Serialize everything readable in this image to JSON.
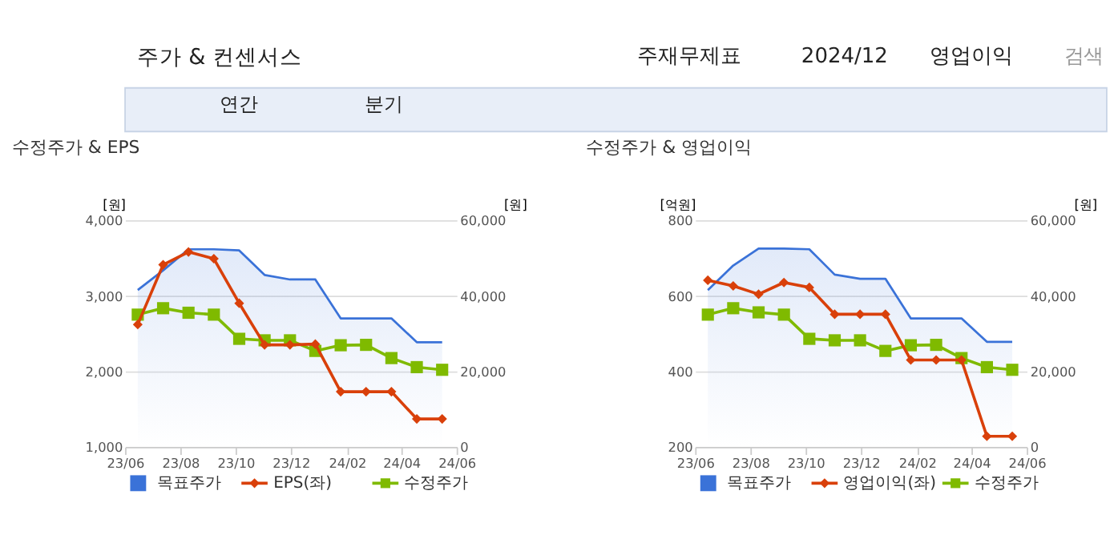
{
  "chart_data": [
    {
      "type": "other",
      "title": "주가 & 컨센서스",
      "annotations": [
        "주재무제표",
        "2024/12",
        "영업이익",
        "검색",
        "연간",
        "분기"
      ]
    },
    {
      "type": "line",
      "title": "수정주가 & EPS",
      "ylabel": "[원]",
      "y2label": "[원]",
      "x": [
        "2023-06-15",
        "2023-07-13",
        "2023-08-10",
        "2023-09-07",
        "2023-10-05",
        "2023-11-02",
        "2023-11-30",
        "2023-12-28",
        "2024-01-25",
        "2024-02-22",
        "2024-03-21",
        "2024-04-18",
        "2024-05-16"
      ],
      "series": [
        {
          "name": "목표주가",
          "type": "area",
          "axis": "y2",
          "color": "#3a72d8",
          "marker": "none",
          "values": [
            41500,
            46700,
            52300,
            52300,
            52000,
            45500,
            44300,
            44300,
            34000,
            34000,
            34000,
            27700,
            27700
          ]
        },
        {
          "name": "EPS(좌)",
          "type": "line",
          "color": "#d9400a",
          "marker": "diamond",
          "values": [
            2620,
            3410,
            3580,
            3490,
            2900,
            2350,
            2350,
            2360,
            1730,
            1730,
            1730,
            1370,
            1370
          ]
        },
        {
          "name": "수정주가",
          "type": "line",
          "axis": "y2",
          "color": "#7fba00",
          "marker": "square",
          "values": [
            35000,
            36700,
            35500,
            35000,
            28600,
            28200,
            28200,
            25400,
            26900,
            27000,
            23500,
            21100,
            20400
          ]
        }
      ],
      "xlim": [
        "2023-06-01",
        "2024-06-01"
      ],
      "xticks": [
        {
          "value": "2023-06-01",
          "label": "23/06"
        },
        {
          "value": "2023-08-01",
          "label": "23/08"
        },
        {
          "value": "2023-10-01",
          "label": "23/10"
        },
        {
          "value": "2023-12-01",
          "label": "23/12"
        },
        {
          "value": "2024-02-01",
          "label": "24/02"
        },
        {
          "value": "2024-04-01",
          "label": "24/04"
        },
        {
          "value": "2024-06-01",
          "label": "24/06"
        }
      ],
      "ylim": [
        1000,
        4000
      ],
      "yticks": [
        {
          "value": 1000,
          "label": "1,000"
        },
        {
          "value": 2000,
          "label": "2,000"
        },
        {
          "value": 3000,
          "label": "3,000"
        },
        {
          "value": 4000,
          "label": "4,000"
        }
      ],
      "y2lim": [
        0,
        60000
      ],
      "y2ticks": [
        0,
        {
          "value": 20000,
          "label": "20,000"
        },
        {
          "value": 40000,
          "label": "40,000"
        },
        {
          "value": 60000,
          "label": "60,000"
        }
      ],
      "grid": "y",
      "legend": "bottom",
      "line_style": "solid"
    },
    {
      "type": "line",
      "title": "수정주가 & 영업이익",
      "ylabel": "[억원]",
      "y2label": "[원]",
      "x": [
        "2023-06-15",
        "2023-07-13",
        "2023-08-10",
        "2023-09-07",
        "2023-10-05",
        "2023-11-02",
        "2023-11-30",
        "2023-12-28",
        "2024-01-25",
        "2024-02-22",
        "2024-03-21",
        "2024-04-18",
        "2024-05-16"
      ],
      "series": [
        {
          "name": "목표주가",
          "type": "area",
          "axis": "y2",
          "color": "#3a72d8",
          "marker": "none",
          "values": [
            41500,
            48000,
            52500,
            52500,
            52300,
            45600,
            44500,
            44500,
            34000,
            34000,
            34000,
            27800,
            27800
          ]
        },
        {
          "name": "영업이익(좌)",
          "type": "line",
          "color": "#d9400a",
          "marker": "diamond",
          "values": [
            641,
            626,
            604,
            635,
            622,
            551,
            551,
            551,
            430,
            430,
            430,
            228,
            228
          ]
        },
        {
          "name": "수정주가",
          "type": "line",
          "axis": "y2",
          "color": "#7fba00",
          "marker": "square",
          "values": [
            35000,
            36700,
            35600,
            35000,
            28600,
            28200,
            28200,
            25400,
            26900,
            27000,
            23500,
            21100,
            20400
          ]
        }
      ],
      "xlim": [
        "2023-06-01",
        "2024-06-01"
      ],
      "xticks": [
        {
          "value": "2023-06-01",
          "label": "23/06"
        },
        {
          "value": "2023-08-01",
          "label": "23/08"
        },
        {
          "value": "2023-10-01",
          "label": "23/10"
        },
        {
          "value": "2023-12-01",
          "label": "23/12"
        },
        {
          "value": "2024-02-01",
          "label": "24/02"
        },
        {
          "value": "2024-04-01",
          "label": "24/04"
        },
        {
          "value": "2024-06-01",
          "label": "24/06"
        }
      ],
      "ylim": [
        200,
        800
      ],
      "yticks": [
        200,
        400,
        600,
        800
      ],
      "y2lim": [
        0,
        60000
      ],
      "y2ticks": [
        0,
        {
          "value": 20000,
          "label": "20,000"
        },
        {
          "value": 40000,
          "label": "40,000"
        },
        {
          "value": 60000,
          "label": "60,000"
        }
      ],
      "grid": "y",
      "legend": "bottom",
      "line_style": "solid"
    }
  ]
}
